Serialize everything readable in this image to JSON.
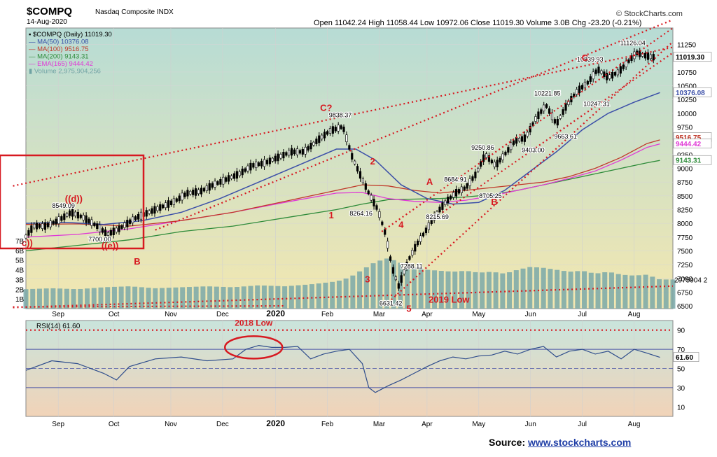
{
  "header": {
    "symbol": "$COMPQ",
    "name": "Nasdaq Composite INDX",
    "date": "14-Aug-2020",
    "ohlc": "Open 11042.24  High 11058.44  Low 10972.06  Close 11019.30  Volume 3.0B  Chg -23.20 (-0.21%)",
    "brand": "© StockCharts.com"
  },
  "legend": [
    {
      "text": "▪ $COMPQ (Daily) 11019.30",
      "color": "#000000"
    },
    {
      "text": "— MA(50) 10376.08",
      "color": "#3b4fa8"
    },
    {
      "text": "— MA(100) 9516.75",
      "color": "#c0392b"
    },
    {
      "text": "— MA(200) 9143.31",
      "color": "#2e8b3a"
    },
    {
      "text": "— EMA(165) 9444.42",
      "color": "#e03ad6"
    },
    {
      "text": "▮ Volume 2,975,904,256",
      "color": "#6fa3a3"
    }
  ],
  "rsi_legend": "RSI(14) 61.60",
  "source_label": "Source:",
  "source_link": "www.stockcharts.com",
  "colors": {
    "price_bg_top": "#b7dcd5",
    "price_bg_bottom": "#f3e7b0",
    "rsi_bg_top": "#c9e4dc",
    "rsi_bg_bottom": "#f1d3b8",
    "candle": "#000000",
    "volume": "#7aa8a8",
    "annotation": "#d71920",
    "ma50": "#3b4fa8",
    "ma100": "#c0392b",
    "ma200": "#2e8b3a",
    "ema165": "#e03ad6"
  },
  "chart_data": {
    "type": "line",
    "title": "$COMPQ Nasdaq Composite INDX",
    "x_labels": [
      "Sep",
      "Oct",
      "Nov",
      "Dec",
      "2020",
      "Feb",
      "Mar",
      "Apr",
      "May",
      "Jun",
      "Jul",
      "Aug"
    ],
    "x_label_pos": [
      2.5,
      6.8,
      11.2,
      15.2,
      19.3,
      23.3,
      27.3,
      31.0,
      35.0,
      39.0,
      43.0,
      47.0
    ],
    "x_max": 50,
    "price_ticks": [
      "11250",
      "10750",
      "10500",
      "10250",
      "10000",
      "9750",
      "9500",
      "9250",
      "9000",
      "8750",
      "8500",
      "8250",
      "8000",
      "7750",
      "7500",
      "7250",
      "7000",
      "6750",
      "6500"
    ],
    "price_ylim": [
      6450,
      11550
    ],
    "volume_ticks": [
      "7B",
      "6B",
      "5B",
      "4B",
      "3B",
      "2B",
      "1B"
    ],
    "volume_label": "2975904 2",
    "rsi_ticks": [
      "90",
      "70",
      "50",
      "30",
      "10"
    ],
    "rsi_ylim": [
      0,
      100
    ],
    "price_callouts": [
      {
        "text": "11019.30",
        "y": 11019.3,
        "bg": "#ffffff",
        "fg": "#000000"
      },
      {
        "text": "10376.08",
        "y": 10376.08,
        "bg": "#ffffff",
        "fg": "#3b4fa8"
      },
      {
        "text": "9516.75",
        "y": 9560,
        "bg": "#ffffff",
        "fg": "#c0392b"
      },
      {
        "text": "9444.42",
        "y": 9444.42,
        "bg": "#ffffff",
        "fg": "#e03ad6"
      },
      {
        "text": "9143.31",
        "y": 9143.31,
        "bg": "#ffffff",
        "fg": "#2e8b3a"
      }
    ],
    "rsi_callout": {
      "text": "61.60",
      "y": 61.6
    },
    "price": {
      "x": [
        0,
        0.6,
        1.5,
        2.5,
        3.5,
        4.5,
        5.5,
        6.3,
        7.2,
        8.5,
        9.5,
        10.5,
        11.5,
        12.5,
        13.5,
        14.5,
        15.5,
        16.5,
        17.5,
        18.5,
        19.5,
        20.5,
        21.5,
        22.5,
        23.5,
        24.5,
        25.2,
        25.8,
        26.2,
        26.6,
        27.2,
        27.8,
        28.3,
        28.8,
        29.2,
        29.7,
        30.3,
        31.0,
        31.8,
        32.5,
        33.2,
        34.0,
        34.8,
        35.5,
        36.3,
        37.0,
        37.8,
        38.6,
        39.4,
        40.2,
        41.0,
        41.8,
        42.6,
        43.4,
        44.2,
        45.0,
        45.8,
        46.6,
        47.2,
        47.8,
        48.5
      ],
      "y": [
        7760,
        7950,
        7950,
        8050,
        8200,
        8100,
        7950,
        7800,
        7900,
        8100,
        8200,
        8300,
        8400,
        8550,
        8580,
        8700,
        8800,
        8900,
        9050,
        9100,
        9200,
        9300,
        9300,
        9500,
        9680,
        9760,
        9220,
        8900,
        8700,
        8500,
        8250,
        7800,
        7200,
        6860,
        7100,
        7400,
        7650,
        7900,
        8200,
        8400,
        8550,
        8650,
        8900,
        9250,
        9050,
        9250,
        9500,
        9550,
        9900,
        10150,
        9800,
        10150,
        10400,
        10550,
        10800,
        10650,
        10750,
        10950,
        11100,
        11050,
        11019.3
      ]
    },
    "ma50": {
      "x": [
        0,
        3,
        6,
        9,
        12,
        15,
        18,
        21,
        24,
        25.5,
        27,
        29,
        31,
        33,
        35,
        37,
        39,
        41,
        43,
        45,
        47,
        49
      ],
      "y": [
        8000,
        8020,
        7980,
        8050,
        8200,
        8450,
        8750,
        9050,
        9350,
        9350,
        9150,
        8700,
        8450,
        8350,
        8380,
        8600,
        8950,
        9300,
        9700,
        10000,
        10200,
        10376.08
      ]
    },
    "ma100": {
      "x": [
        0,
        4,
        8,
        12,
        16,
        20,
        24,
        26,
        28,
        30,
        32,
        34,
        36,
        38,
        40,
        42,
        44,
        46,
        48,
        49
      ],
      "y": [
        7980,
        7990,
        7950,
        8050,
        8200,
        8400,
        8600,
        8700,
        8680,
        8600,
        8550,
        8600,
        8650,
        8700,
        8750,
        8850,
        9000,
        9200,
        9450,
        9516.75
      ]
    },
    "ma200": {
      "x": [
        0,
        4,
        8,
        12,
        16,
        20,
        24,
        26,
        28,
        30,
        32,
        34,
        36,
        38,
        40,
        42,
        44,
        46,
        48,
        49
      ],
      "y": [
        7500,
        7600,
        7700,
        7850,
        7950,
        8100,
        8250,
        8350,
        8430,
        8440,
        8450,
        8480,
        8520,
        8600,
        8700,
        8800,
        8900,
        9000,
        9100,
        9143.31
      ]
    },
    "ema165": {
      "x": [
        0,
        4,
        8,
        12,
        16,
        20,
        24,
        26,
        28,
        30,
        32,
        34,
        36,
        38,
        40,
        42,
        44,
        46,
        48,
        49
      ],
      "y": [
        7750,
        7800,
        7900,
        8050,
        8200,
        8380,
        8550,
        8560,
        8450,
        8400,
        8380,
        8420,
        8500,
        8600,
        8700,
        8820,
        8950,
        9150,
        9380,
        9444.42
      ]
    },
    "volume": {
      "x": [
        0,
        2,
        4,
        6,
        8,
        10,
        12,
        14,
        16,
        18,
        20,
        22,
        24,
        25,
        26,
        27,
        28,
        29,
        30,
        31,
        32,
        33,
        34,
        35,
        36,
        37,
        38,
        39,
        40,
        41,
        42,
        43,
        44,
        45,
        46,
        47,
        48,
        49
      ],
      "y": [
        2.0,
        2.1,
        2.0,
        2.2,
        2.3,
        2.1,
        2.2,
        2.3,
        2.2,
        2.4,
        2.3,
        2.5,
        2.8,
        3.2,
        4.0,
        4.8,
        5.2,
        4.7,
        4.2,
        4.0,
        3.9,
        3.8,
        3.9,
        3.7,
        3.8,
        3.6,
        4.0,
        4.3,
        4.2,
        4.0,
        3.8,
        3.9,
        3.6,
        3.8,
        3.5,
        3.4,
        3.5,
        3.0
      ],
      "ylim": [
        0,
        8
      ]
    },
    "rsi": {
      "x": [
        0,
        2,
        4,
        6,
        7,
        8,
        10,
        12,
        14,
        16,
        17,
        18,
        19,
        20,
        21,
        22,
        23,
        24,
        25,
        26,
        26.5,
        27,
        28,
        29,
        30,
        31,
        32,
        33,
        34,
        35,
        36,
        37,
        38,
        39,
        40,
        41,
        42,
        43,
        44,
        45,
        46,
        47,
        48,
        49
      ],
      "y": [
        48,
        58,
        55,
        45,
        38,
        52,
        60,
        62,
        58,
        60,
        70,
        74,
        72,
        72,
        73,
        60,
        65,
        68,
        70,
        55,
        30,
        25,
        32,
        38,
        45,
        52,
        58,
        62,
        60,
        63,
        64,
        68,
        65,
        70,
        73,
        62,
        68,
        70,
        65,
        68,
        60,
        70,
        66,
        61.6
      ]
    },
    "labels": [
      {
        "text": "9838.37",
        "x": 24.3,
        "y": 9930
      },
      {
        "text": "8264.16",
        "x": 25.9,
        "y": 8140
      },
      {
        "text": "8215.69",
        "x": 31.8,
        "y": 8080
      },
      {
        "text": "7288.11",
        "x": 29.8,
        "y": 7180
      },
      {
        "text": "6631.42",
        "x": 28.2,
        "y": 6510
      },
      {
        "text": "8684.91",
        "x": 33.2,
        "y": 8760
      },
      {
        "text": "8705.25",
        "x": 35.9,
        "y": 8460
      },
      {
        "text": "9250.86",
        "x": 35.3,
        "y": 9340
      },
      {
        "text": "9403.00",
        "x": 39.2,
        "y": 9290
      },
      {
        "text": "9663.61",
        "x": 41.7,
        "y": 9540
      },
      {
        "text": "10221.85",
        "x": 40.3,
        "y": 10320
      },
      {
        "text": "10247.31",
        "x": 44.1,
        "y": 10130
      },
      {
        "text": "10839.93",
        "x": 43.6,
        "y": 10940
      },
      {
        "text": "11126.04",
        "x": 46.9,
        "y": 11240
      },
      {
        "text": "8549.09",
        "x": 2.9,
        "y": 8280
      },
      {
        "text": "7700.00",
        "x": 5.7,
        "y": 7670
      }
    ],
    "annotations": [
      {
        "text": "C?",
        "x": 23.2,
        "y": 10040
      },
      {
        "text": "C",
        "x": 43.2,
        "y": 10950
      },
      {
        "text": "2",
        "x": 26.8,
        "y": 9070
      },
      {
        "text": "A",
        "x": 31.2,
        "y": 8700
      },
      {
        "text": "B",
        "x": 36.2,
        "y": 8330
      },
      {
        "text": "1",
        "x": 23.6,
        "y": 8090
      },
      {
        "text": "4",
        "x": 29.0,
        "y": 7920
      },
      {
        "text": "3",
        "x": 26.4,
        "y": 6930
      },
      {
        "text": "2019 Low",
        "x": 32.7,
        "y": 6560
      },
      {
        "text": "((d))",
        "x": 3.7,
        "y": 8390
      },
      {
        "text": "((e))",
        "x": 6.5,
        "y": 7540
      },
      {
        "text": "B",
        "x": 8.6,
        "y": 7250
      },
      {
        "text": "c))",
        "x": 0.1,
        "y": 7590
      },
      {
        "text": "5",
        "x": 29.6,
        "y": 6390
      }
    ],
    "rsi_annotation": "2018 Low"
  }
}
